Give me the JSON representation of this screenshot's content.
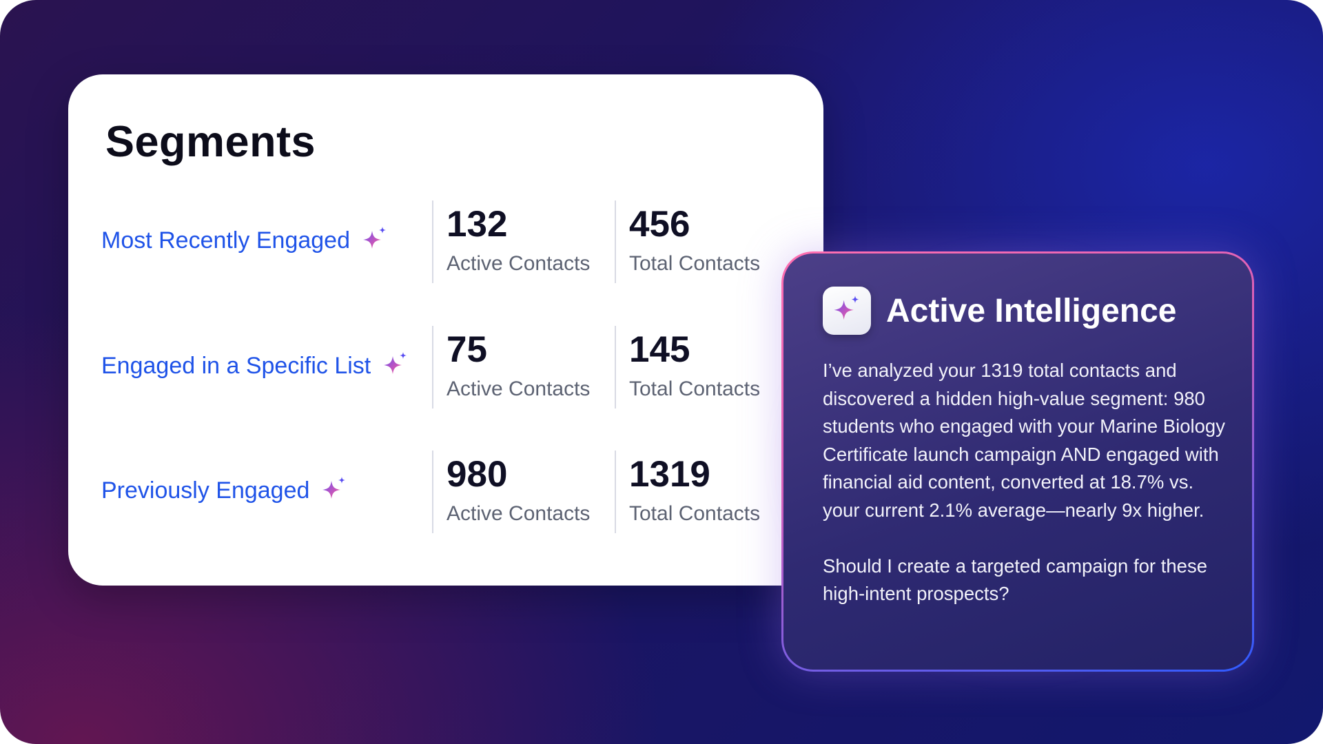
{
  "segments": {
    "title": "Segments",
    "rows": [
      {
        "name": "Most Recently Engaged",
        "active_value": "132",
        "active_label": "Active Contacts",
        "total_value": "456",
        "total_label": "Total Contacts"
      },
      {
        "name": "Engaged in a Specific List",
        "active_value": "75",
        "active_label": "Active Contacts",
        "total_value": "145",
        "total_label": "Total Contacts"
      },
      {
        "name": "Previously Engaged",
        "active_value": "980",
        "active_label": "Active Contacts",
        "total_value": "1319",
        "total_label": "Total Contacts"
      }
    ]
  },
  "icons": {
    "segment_icon": "sparkle-icon",
    "ai_logo": "sparkle-icon"
  },
  "ai_panel": {
    "title": "Active Intelligence",
    "paragraph_1": "I’ve analyzed your 1319 total contacts and discovered a hidden high-value segment: 980 students who engaged with your Marine Biology Certificate launch campaign AND engaged with financial aid content, converted at 18.7% vs. your current 2.1% average—nearly 9x higher.",
    "paragraph_2": "Should I create a targeted campaign for these high-intent prospects?"
  },
  "colors": {
    "accent_blue": "#1f53e8",
    "sparkle_pink": "#ff5c9a",
    "sparkle_purple": "#6a4cf0"
  }
}
